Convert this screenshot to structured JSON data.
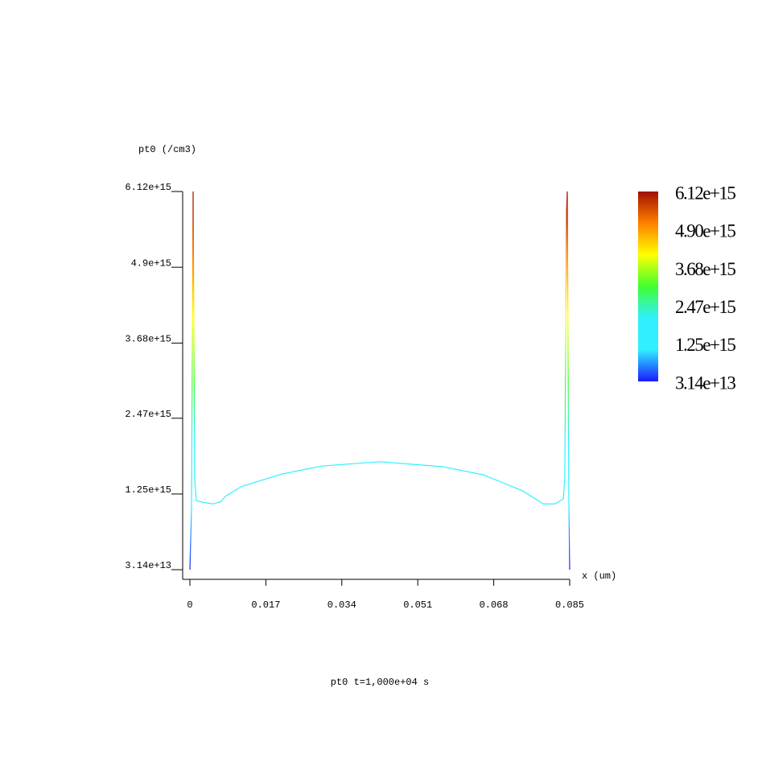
{
  "chart_data": {
    "type": "line",
    "title": "pt0 t=1,000e+04 s",
    "y_label": "pt0 (/cm3)",
    "x_label": "x (um)",
    "x": [
      0,
      0.00036,
      0.00072,
      0.00108,
      0.00144,
      0.0034,
      0.0052,
      0.007,
      0.0079,
      0.01153,
      0.0205,
      0.0295,
      0.0425,
      0.05655,
      0.0656,
      0.0745,
      0.0791,
      0.0817,
      0.08356,
      0.0839,
      0.0843,
      0.08446,
      0.0848,
      0.085
    ],
    "values": [
      31400000000000.0,
      1000000000000000.0,
      6120000000000000.0,
      1500000000000000.0,
      1140000000000000.0,
      1110000000000000.0,
      1090000000000000.0,
      1130000000000000.0,
      1210000000000000.0,
      1370000000000000.0,
      1570000000000000.0,
      1700000000000000.0,
      1770000000000000.0,
      1690000000000000.0,
      1560000000000000.0,
      1300000000000000.0,
      1090000000000000.0,
      1090000000000000.0,
      1170000000000000.0,
      1500000000000000.0,
      5800000000000000.0,
      6120000000000000.0,
      1200000000000000.0,
      31400000000000.0
    ],
    "xlim": [
      0,
      0.085
    ],
    "xticks": [
      0,
      0.017,
      0.034,
      0.051,
      0.068,
      0.085
    ],
    "ylim": [
      31400000000000.0,
      6120000000000000.0
    ],
    "yticks": [
      {
        "value": 31400000000000.0,
        "label": "3.14e+13"
      },
      {
        "value": 1250000000000000.0,
        "label": "1.25e+15"
      },
      {
        "value": 2470000000000000.0,
        "label": "2.47e+15"
      },
      {
        "value": 3680000000000000.0,
        "label": "3.68e+15"
      },
      {
        "value": 4900000000000000.0,
        "label": "4.9e+15"
      },
      {
        "value": 6120000000000000.0,
        "label": "6.12e+15"
      }
    ],
    "colormap": [
      "#1a1aff",
      "#30f0ff",
      "#30f0ff",
      "#40ff30",
      "#ffff00",
      "#ff8000",
      "#a01000"
    ],
    "colorbar": {
      "ticks": [
        {
          "value": 6120000000000000.0,
          "label": "6.12e+15"
        },
        {
          "value": 4900000000000000.0,
          "label": "4.90e+15"
        },
        {
          "value": 3680000000000000.0,
          "label": "3.68e+15"
        },
        {
          "value": 2470000000000000.0,
          "label": "2.47e+15"
        },
        {
          "value": 1250000000000000.0,
          "label": "1.25e+15"
        },
        {
          "value": 31400000000000.0,
          "label": "3.14e+13"
        }
      ]
    }
  }
}
